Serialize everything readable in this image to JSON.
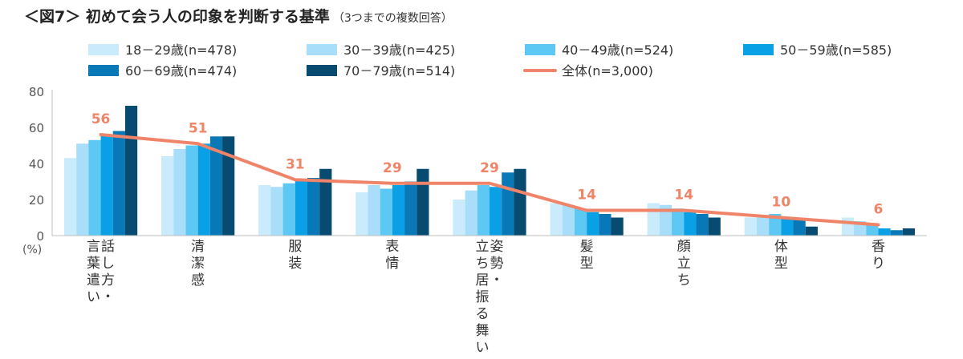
{
  "title": "＜図7＞ 初めて会う人の印象を判断する基準",
  "subtitle": "（3つまでの複数回答）",
  "chart_data": {
    "type": "bar",
    "title": "＜図7＞ 初めて会う人の印象を判断する基準",
    "subtitle": "（3つまでの複数回答）",
    "ylabel": "(%)",
    "ylim": [
      0,
      80
    ],
    "yticks": [
      0,
      20,
      40,
      60,
      80
    ],
    "grid": false,
    "legend_position": "top",
    "categories": [
      "話し方・言葉遣い",
      "清潔感",
      "服装",
      "表情",
      "姿勢・立ち居振る舞い",
      "髪型",
      "顔立ち",
      "体型",
      "香り"
    ],
    "category_lines": [
      [
        "言葉遣い",
        "話し方・"
      ],
      [
        "清潔感"
      ],
      [
        "服装"
      ],
      [
        "表情"
      ],
      [
        "立ち居振る舞い",
        "姿勢・"
      ],
      [
        "髪型"
      ],
      [
        "顔立ち"
      ],
      [
        "体型"
      ],
      [
        "香り"
      ]
    ],
    "series": [
      {
        "name": "18－29歳(n=478)",
        "color": "#c9ebfb",
        "values": [
          43,
          44,
          28,
          24,
          20,
          18,
          18,
          10,
          10
        ]
      },
      {
        "name": "30－39歳(n=425)",
        "color": "#a8defa",
        "values": [
          51,
          48,
          27,
          28,
          25,
          17,
          17,
          10,
          8
        ]
      },
      {
        "name": "40－49歳(n=524)",
        "color": "#5ec8f5",
        "values": [
          53,
          50,
          29,
          26,
          28,
          15,
          15,
          12,
          6
        ]
      },
      {
        "name": "50－59歳(n=585)",
        "color": "#0aa0e6",
        "values": [
          56,
          51,
          31,
          28,
          27,
          13,
          13,
          10,
          4
        ]
      },
      {
        "name": "60－69歳(n=474)",
        "color": "#0878b6",
        "values": [
          58,
          55,
          32,
          30,
          35,
          12,
          12,
          9,
          3
        ]
      },
      {
        "name": "70－79歳(n=514)",
        "color": "#074b70",
        "values": [
          72,
          55,
          37,
          37,
          37,
          10,
          10,
          5,
          4
        ]
      }
    ],
    "total_series": {
      "name": "全体(n=3,000)",
      "color": "#ef8468",
      "values": [
        56,
        51,
        31,
        29,
        29,
        14,
        14,
        10,
        6
      ]
    }
  }
}
